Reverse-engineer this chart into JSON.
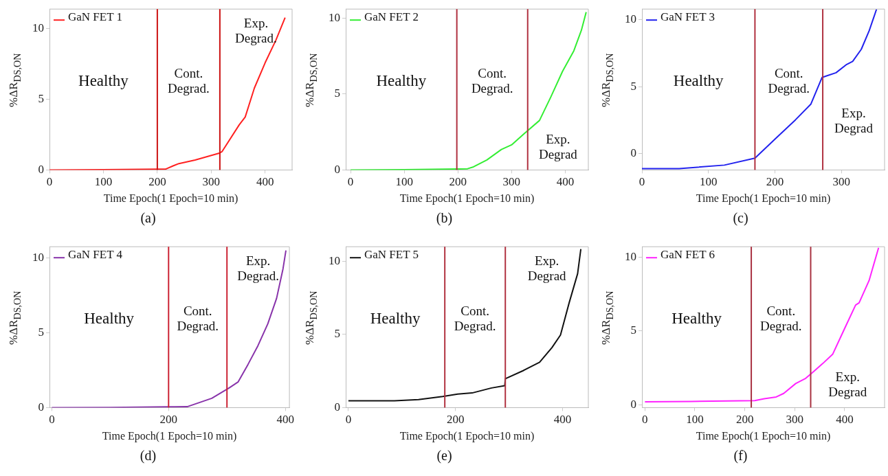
{
  "chart_data": [
    {
      "type": "line",
      "title": "(a)",
      "xlabel": "Time Epoch(1 Epoch=10 min)",
      "ylabel": "%ΔR$_{DS,ON}$",
      "xlim": [
        0,
        450
      ],
      "xticks": [
        0,
        100,
        200,
        300,
        400
      ],
      "ylim": [
        0,
        11.4
      ],
      "yticks": [
        0,
        5,
        10
      ],
      "legend": "top left",
      "series": [
        {
          "name": "GaN FET 1",
          "color": "#ff2020",
          "x": [
            0,
            100,
            200,
            215,
            230,
            240,
            270,
            316,
            320,
            352,
            363,
            380,
            400,
            420,
            437
          ],
          "values": [
            0,
            0.02,
            0.05,
            0.05,
            0.3,
            0.45,
            0.7,
            1.2,
            1.3,
            3.2,
            3.75,
            5.8,
            7.6,
            9.2,
            10.8
          ]
        }
      ],
      "ref_lines": [
        {
          "axis": "x",
          "value": 200,
          "color": "#cc1111"
        },
        {
          "axis": "x",
          "value": 316,
          "color": "#cc1111"
        }
      ],
      "annotations": [
        "Healthy",
        "Cont.\nDegrad.",
        "Exp.\nDegrad."
      ]
    },
    {
      "type": "line",
      "title": "(b)",
      "xlabel": "Time Epoch(1 Epoch=10 min)",
      "ylabel": "%ΔR$_{DS,ON}$",
      "xlim": [
        -9,
        443
      ],
      "xticks": [
        0,
        100,
        200,
        300,
        400
      ],
      "ylim": [
        0,
        10.6
      ],
      "yticks": [
        0,
        5,
        10
      ],
      "legend": "top left",
      "series": [
        {
          "name": "GaN FET 2",
          "color": "#33ee33",
          "x": [
            0,
            100,
            200,
            218,
            229,
            254,
            281,
            300,
            327,
            352,
            373,
            395,
            416,
            430,
            439
          ],
          "values": [
            0,
            0.02,
            0.06,
            0.08,
            0.2,
            0.66,
            1.35,
            1.65,
            2.5,
            3.26,
            4.8,
            6.5,
            7.85,
            9.2,
            10.4
          ]
        }
      ],
      "ref_lines": [
        {
          "axis": "x",
          "value": 198,
          "color": "#b0303f"
        },
        {
          "axis": "x",
          "value": 330,
          "color": "#b0303f"
        }
      ],
      "annotations": [
        "Healthy",
        "Cont.\nDegrad.",
        "Exp.\nDegrad"
      ]
    },
    {
      "type": "line",
      "title": "(c)",
      "xlabel": "Time Epoch(1 Epoch=10 min)",
      "ylabel": "%ΔR$_{DS,ON}$",
      "xlim": [
        0,
        365
      ],
      "xticks": [
        0,
        100,
        200,
        300
      ],
      "ylim": [
        -1.2,
        10.8
      ],
      "yticks": [
        0,
        5,
        10
      ],
      "legend": "top left",
      "series": [
        {
          "name": "GaN FET 3",
          "color": "#2222ee",
          "x": [
            0,
            56,
            124,
            170,
            201,
            231,
            254,
            271,
            277,
            292,
            308,
            317,
            330,
            342,
            353
          ],
          "values": [
            -1.1,
            -1.1,
            -0.84,
            -0.32,
            1.14,
            2.54,
            3.7,
            5.7,
            5.8,
            6.05,
            6.67,
            6.9,
            7.8,
            9.2,
            10.8
          ]
        }
      ],
      "ref_lines": [
        {
          "axis": "x",
          "value": 170,
          "color": "#b0303f"
        },
        {
          "axis": "x",
          "value": 272,
          "color": "#b0303f"
        }
      ],
      "annotations": [
        "Healthy",
        "Cont.\nDegrad.",
        "Exp.\nDegrad"
      ]
    },
    {
      "type": "line",
      "title": "(d)",
      "xlabel": "Time Epoch(1 Epoch=10 min)",
      "ylabel": "%ΔR$_{DS,ON}$",
      "xlim": [
        -4,
        407
      ],
      "xticks": [
        0,
        200,
        400
      ],
      "ylim": [
        0,
        10.75
      ],
      "yticks": [
        0,
        5,
        10
      ],
      "legend": "top left",
      "series": [
        {
          "name": "GaN FET 4",
          "color": "#8833aa",
          "x": [
            0,
            100,
            200,
            232,
            274,
            304,
            319,
            336,
            353,
            370,
            385,
            396,
            401
          ],
          "values": [
            0,
            0.01,
            0.05,
            0.06,
            0.62,
            1.32,
            1.71,
            2.88,
            4.13,
            5.6,
            7.3,
            9.27,
            10.5
          ]
        }
      ],
      "ref_lines": [
        {
          "axis": "x",
          "value": 200,
          "color": "#cc2233"
        },
        {
          "axis": "x",
          "value": 300,
          "color": "#cc2233"
        }
      ],
      "annotations": [
        "Healthy",
        "Cont.\nDegrad.",
        "Exp.\nDegrad."
      ]
    },
    {
      "type": "line",
      "title": "(e)",
      "xlabel": "Time Epoch(1 Epoch=10 min)",
      "ylabel": "%ΔR$_{DS,ON}$",
      "xlim": [
        -5,
        448
      ],
      "xticks": [
        0,
        200,
        400
      ],
      "ylim": [
        0,
        11
      ],
      "yticks": [
        0,
        5,
        10
      ],
      "legend": "top left",
      "series": [
        {
          "name": "GaN FET 5",
          "color": "#111111",
          "x": [
            0,
            86,
            131,
            176,
            204,
            231,
            267,
            292,
            293,
            326,
            357,
            380,
            396,
            412,
            428,
            434
          ],
          "values": [
            0.47,
            0.47,
            0.55,
            0.76,
            0.92,
            1.0,
            1.34,
            1.5,
            1.97,
            2.52,
            3.1,
            4.1,
            4.96,
            7.14,
            9.16,
            10.84
          ]
        }
      ],
      "ref_lines": [
        {
          "axis": "x",
          "value": 180,
          "color": "#b0303f"
        },
        {
          "axis": "x",
          "value": 293,
          "color": "#b0303f"
        }
      ],
      "annotations": [
        "Healthy",
        "Cont.\nDegrad.",
        "Exp.\nDegrad"
      ]
    },
    {
      "type": "line",
      "title": "(f)",
      "xlabel": "Time Epoch(1 Epoch=10 min)",
      "ylabel": "%ΔR$_{DS,ON}$",
      "xlim": [
        -6,
        480
      ],
      "xticks": [
        0,
        100,
        200,
        300,
        400
      ],
      "ylim": [
        -0.2,
        10.7
      ],
      "yticks": [
        0,
        5,
        10
      ],
      "legend": "top left",
      "series": [
        {
          "name": "GaN FET 6",
          "color": "#ff22ff",
          "x": [
            0,
            93,
            220,
            239,
            263,
            278,
            302,
            322,
            337,
            356,
            376,
            400,
            422,
            429,
            449,
            468
          ],
          "values": [
            0.19,
            0.22,
            0.27,
            0.4,
            0.52,
            0.76,
            1.43,
            1.78,
            2.22,
            2.78,
            3.41,
            5.16,
            6.75,
            6.9,
            8.41,
            10.63
          ]
        }
      ],
      "ref_lines": [
        {
          "axis": "x",
          "value": 213,
          "color": "#a83040"
        },
        {
          "axis": "x",
          "value": 332,
          "color": "#a83040"
        }
      ],
      "annotations": [
        "Healthy",
        "Cont.\nDegrad.",
        "Exp.\nDegrad"
      ]
    }
  ]
}
